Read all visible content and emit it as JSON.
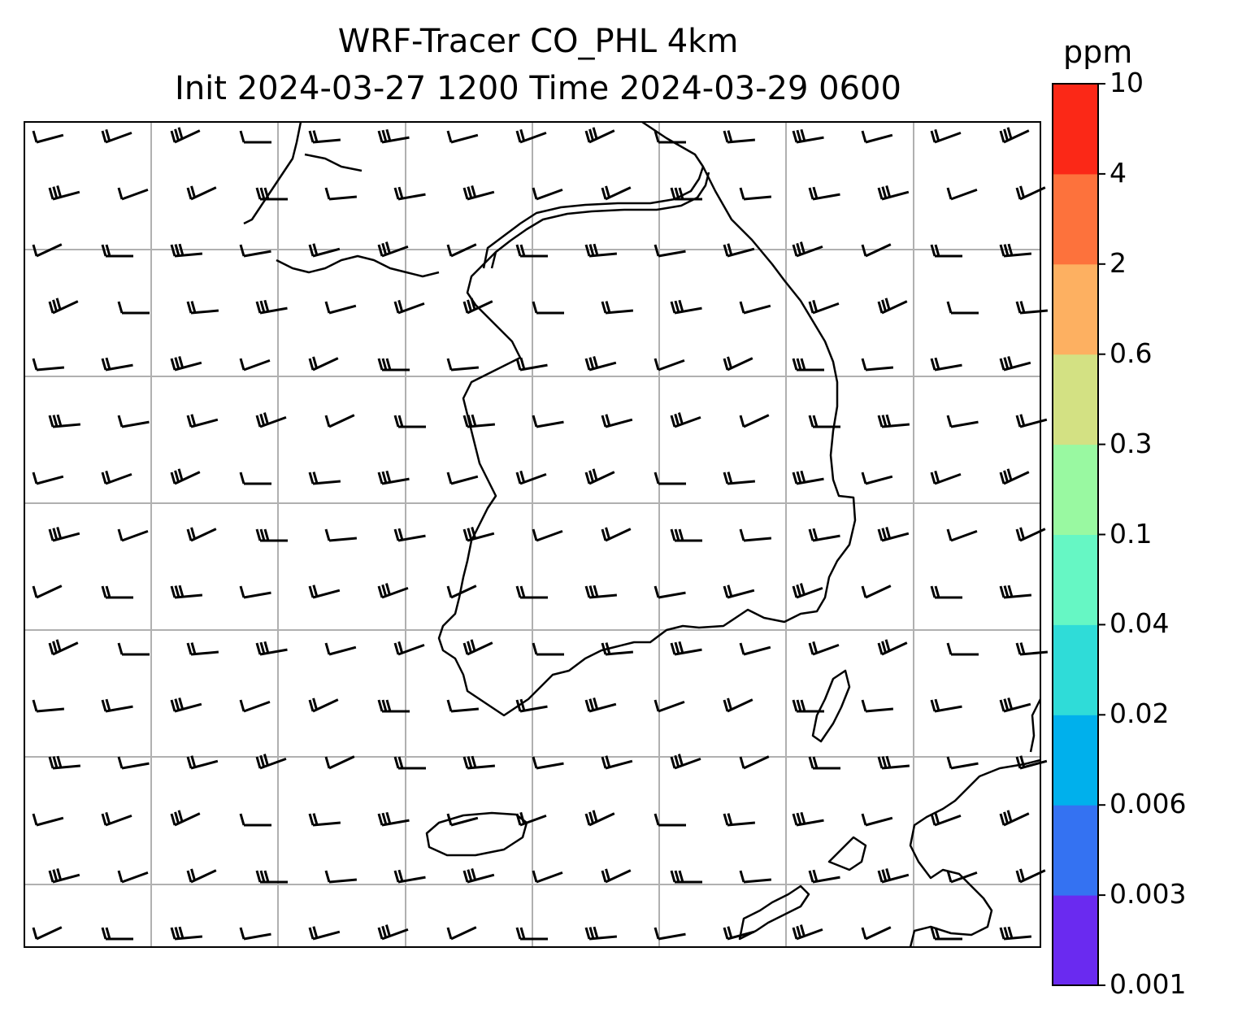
{
  "title_line1": "WRF-Tracer CO_PHL 4km",
  "title_line2": "Init 2024-03-27 1200 Time 2024-03-29 0600",
  "colorbar": {
    "unit": "ppm",
    "tick_labels": [
      "0.001",
      "0.003",
      "0.006",
      "0.02",
      "0.04",
      "0.1",
      "0.3",
      "0.6",
      "2",
      "4",
      "10"
    ],
    "colors": [
      "#6a2af0",
      "#3472f2",
      "#00b0ec",
      "#2fdcd8",
      "#66f7c4",
      "#99f9a1",
      "#d3e183",
      "#fdb061",
      "#fd723c",
      "#fb2817"
    ]
  },
  "map": {
    "gridline_color": "#b0b0b0",
    "coastline_color": "#000000",
    "wind_barbs": "present"
  }
}
